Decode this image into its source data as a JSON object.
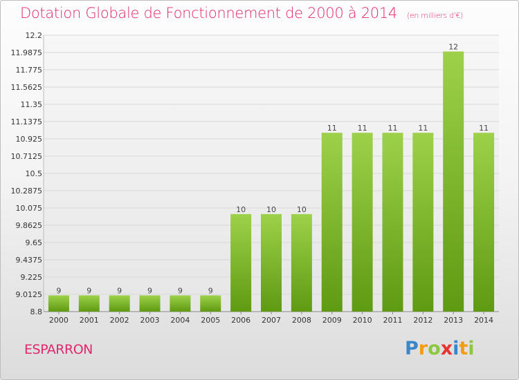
{
  "title": "Dotation Globale de Fonctionnement de 2000 à 2014",
  "subtitle": "(en milliers d'€)",
  "commune": "ESPARRON",
  "logo": "Proxiti",
  "colors": {
    "accent": "#e0286e",
    "bar_top": "#9ed14a",
    "bar_bottom": "#5e9a12"
  },
  "chart_data": {
    "type": "bar",
    "title": "Dotation Globale de Fonctionnement de 2000 à 2014",
    "subtitle": "(en milliers d'€)",
    "categories": [
      "2000",
      "2001",
      "2002",
      "2003",
      "2004",
      "2005",
      "2006",
      "2007",
      "2008",
      "2009",
      "2010",
      "2011",
      "2012",
      "2013",
      "2014"
    ],
    "values": [
      9,
      9,
      9,
      9,
      9,
      9,
      10,
      10,
      10,
      11,
      11,
      11,
      11,
      12,
      11
    ],
    "value_labels": [
      "9",
      "9",
      "9",
      "9",
      "9",
      "9",
      "10",
      "10",
      "10",
      "11",
      "11",
      "11",
      "11",
      "12",
      "11"
    ],
    "ylim": [
      8.8,
      12.2
    ],
    "yticks": [
      "8.8",
      "9.0125",
      "9.225",
      "9.4375",
      "9.65",
      "9.8625",
      "10.075",
      "10.2875",
      "10.5",
      "10.7125",
      "10.925",
      "11.1375",
      "11.35",
      "11.5625",
      "11.775",
      "11.9875",
      "12.2"
    ],
    "grid": true,
    "legend": "none"
  }
}
